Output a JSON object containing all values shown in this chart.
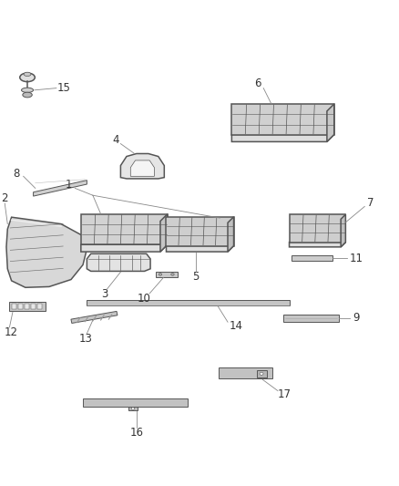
{
  "title": "",
  "background_color": "#ffffff",
  "line_color": "#555555",
  "label_color": "#444444",
  "figsize": [
    4.38,
    5.33
  ],
  "dpi": 100
}
